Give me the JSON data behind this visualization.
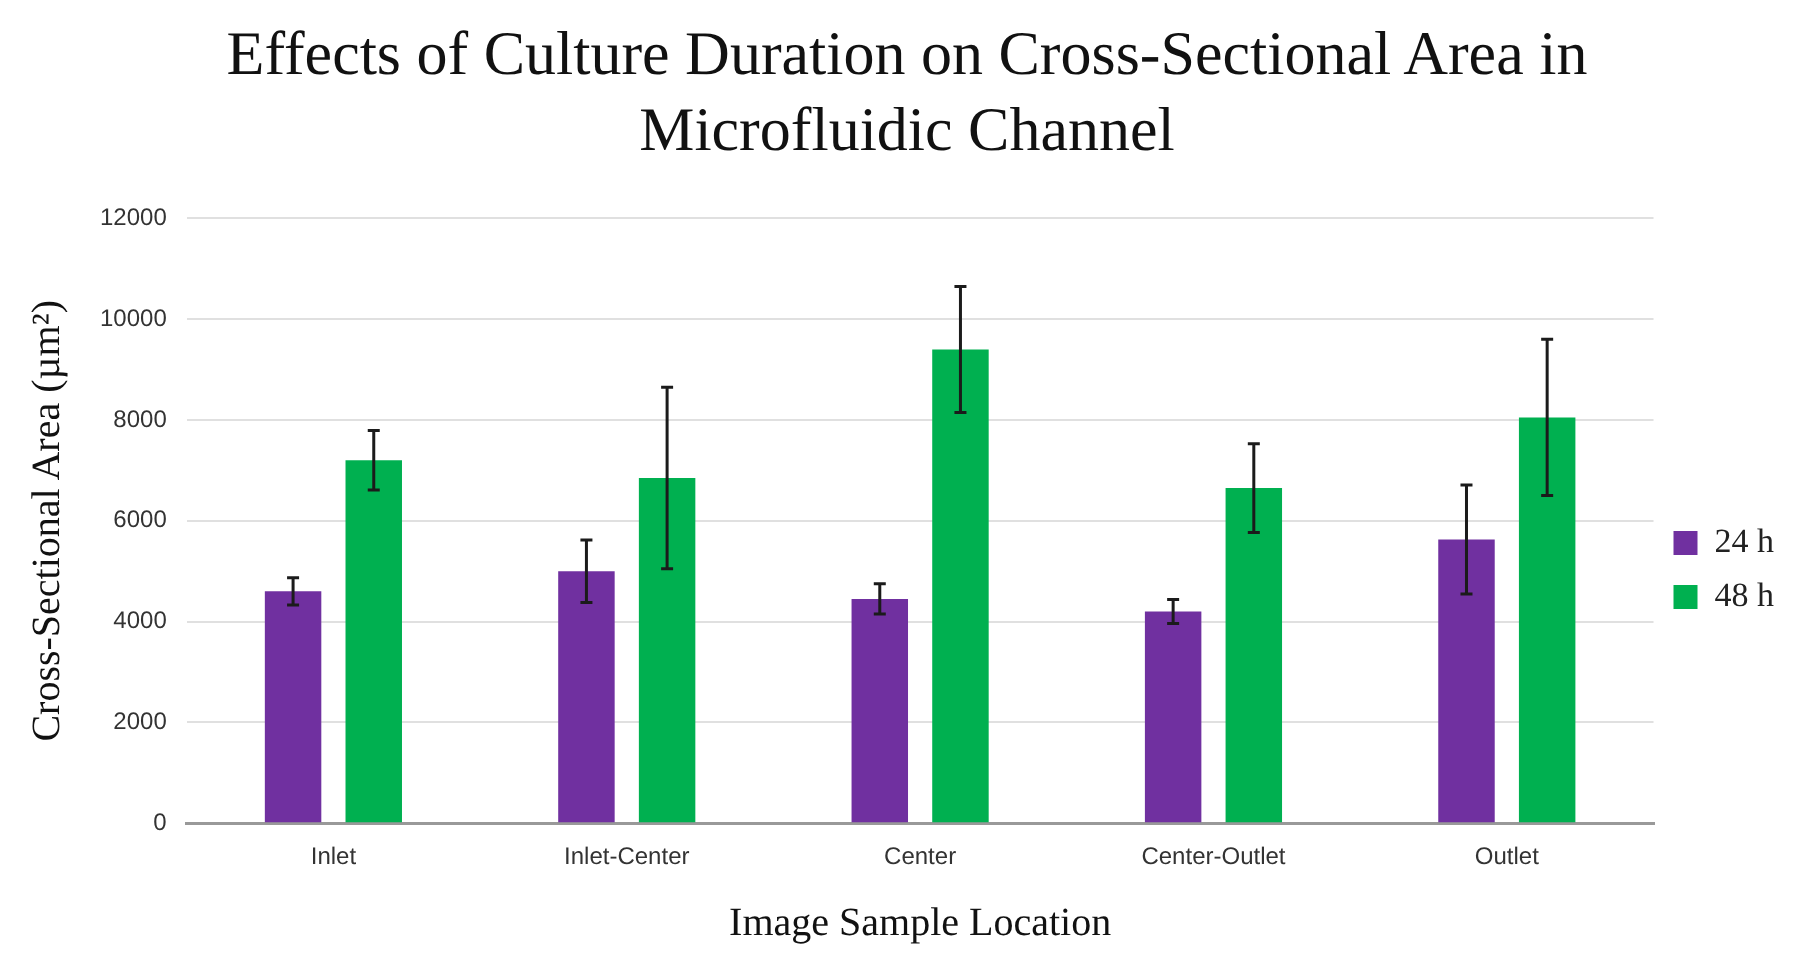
{
  "chart_data": {
    "type": "bar",
    "title": "Effects of Culture Duration on Cross-Sectional Area in Microfluidic Channel",
    "xlabel": "Image Sample Location",
    "ylabel": "Cross-Sectional Area (µm²)",
    "categories": [
      "Inlet",
      "Inlet-Center",
      "Center",
      "Center-Outlet",
      "Outlet"
    ],
    "series": [
      {
        "name": "24 h",
        "color": "#7030a0",
        "values": [
          4600,
          5000,
          4450,
          4200,
          5630
        ],
        "errors": [
          270,
          620,
          300,
          240,
          1080
        ]
      },
      {
        "name": "48 h",
        "color": "#00b050",
        "values": [
          7200,
          6850,
          9400,
          6650,
          8050
        ],
        "errors": [
          590,
          1800,
          1250,
          880,
          1550
        ]
      }
    ],
    "ylim": [
      0,
      12000
    ],
    "yticks": [
      0,
      2000,
      4000,
      6000,
      8000,
      10000,
      12000
    ],
    "grid": "y",
    "legend": "right"
  }
}
